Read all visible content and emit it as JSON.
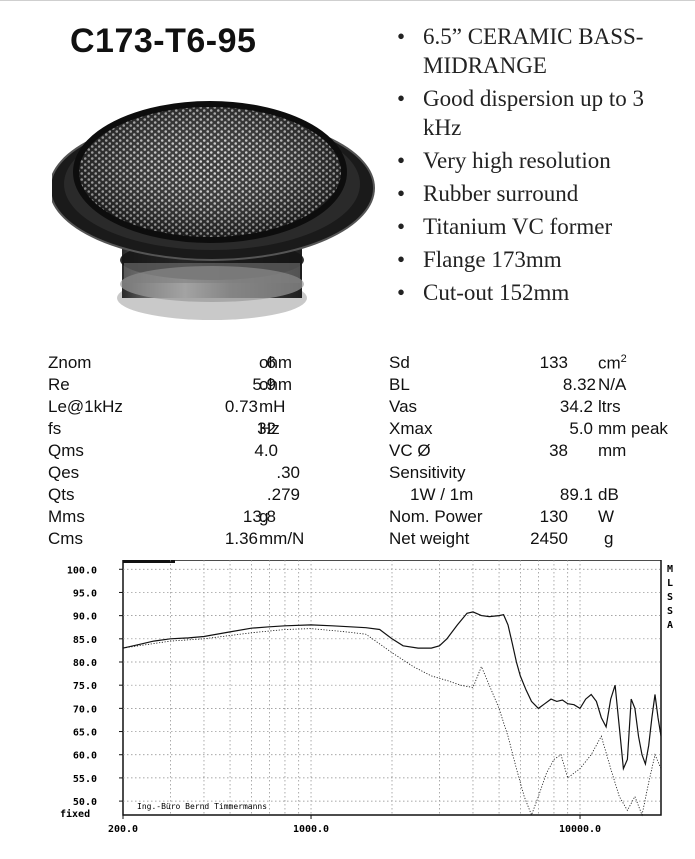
{
  "title": "C173-T6-95",
  "bullets": [
    "6.5” CERAMIC BASS-MIDRANGE",
    "Good dispersion up to 3 kHz",
    "Very high resolution",
    "Rubber surround",
    "Titanium VC former",
    "Flange 173mm",
    "Cut-out 152mm"
  ],
  "specs_left": [
    {
      "label": "Znom",
      "value": "6",
      "unit": "ohm"
    },
    {
      "label": "Re",
      "value": "5.9",
      "unit": "ohm"
    },
    {
      "label": "Le@1kHz",
      "value": "0.73",
      "unit": "mH"
    },
    {
      "label": "fs",
      "value": "32",
      "unit": "Hz"
    },
    {
      "label": "Qms",
      "value": "4.0",
      "unit": ""
    },
    {
      "label": "Qes",
      "value": ".30",
      "unit": ""
    },
    {
      "label": "Qts",
      "value": ".279",
      "unit": ""
    },
    {
      "label": "Mms",
      "value": "13.8",
      "unit": "g"
    },
    {
      "label": "Cms",
      "value": "1.36",
      "unit": "mm/N"
    }
  ],
  "specs_right": {
    "sd": {
      "label": "Sd",
      "value": "133",
      "unit": "cm",
      "unit_sup": "2"
    },
    "bl": {
      "label": "BL",
      "value": "8.32",
      "unit": "N/A"
    },
    "vas": {
      "label": "Vas",
      "value": "34.2",
      "unit": "ltrs"
    },
    "xmax": {
      "label": "Xmax",
      "value": "5.0",
      "unit": "mm peak"
    },
    "vc": {
      "label": "VC Ø",
      "value": "38",
      "unit": "mm"
    },
    "sens": {
      "label": "Sensitivity",
      "sub_label": "1W / 1m",
      "value": "89.1",
      "unit": "dB"
    },
    "power": {
      "label": "Nom. Power",
      "value": "130",
      "unit": "W"
    },
    "weight": {
      "label": "Net weight",
      "value": "2450",
      "unit": "g"
    }
  },
  "graph": {
    "side_label": [
      "M",
      "L",
      "S",
      "S",
      "A"
    ],
    "fixed_label": "fixed",
    "credit": "Ing.-Büro Bernd Timmermanns",
    "line_color": "#111111",
    "grid_color": "#888888"
  },
  "chart_data": {
    "type": "line",
    "title": "",
    "xlabel": "",
    "ylabel": "",
    "x_scale": "log",
    "xlim": [
      200,
      20000
    ],
    "ylim": [
      47,
      102
    ],
    "x_tick_labels": [
      "200.0",
      "1000.0",
      "10000.0"
    ],
    "y_tick_labels": [
      "100.0",
      "95.0",
      "90.0",
      "85.0",
      "80.0",
      "75.0",
      "70.0",
      "65.0",
      "60.0",
      "55.0",
      "50.0"
    ],
    "grid": true,
    "series": [
      {
        "style": "solid",
        "x": [
          200,
          230,
          260,
          300,
          350,
          400,
          500,
          600,
          700,
          800,
          1000,
          1200,
          1400,
          1600,
          1800,
          2000,
          2200,
          2500,
          2800,
          3000,
          3200,
          3500,
          3800,
          4000,
          4300,
          4600,
          5000,
          5200,
          5400,
          5600,
          5800,
          6000,
          6300,
          6600,
          7000,
          7400,
          7800,
          8200,
          8600,
          9000,
          9500,
          10000,
          10500,
          11000,
          11500,
          12000,
          12500,
          13000,
          13500,
          14000,
          14500,
          15000,
          15500,
          16000,
          16500,
          17000,
          17500,
          18000,
          18500,
          19000,
          19500,
          20000
        ],
        "y": [
          83,
          83.8,
          84.5,
          85,
          85.2,
          85.5,
          86.5,
          87.3,
          87.6,
          87.8,
          88,
          87.8,
          87.6,
          87.4,
          87,
          85,
          83.5,
          83,
          83,
          83.5,
          85,
          88,
          90.5,
          90.8,
          90,
          89.8,
          90,
          90.2,
          88,
          84,
          80,
          77,
          74,
          71.5,
          70,
          71,
          72,
          71.5,
          71.8,
          71,
          70.8,
          70,
          72,
          73,
          71.5,
          68,
          66,
          72,
          75,
          66,
          57,
          59,
          72,
          70,
          64,
          60,
          58,
          62,
          68,
          73,
          68,
          64
        ]
      },
      {
        "style": "dotted",
        "x": [
          200,
          300,
          400,
          600,
          800,
          1000,
          1300,
          1600,
          2000,
          2400,
          2800,
          3200,
          3600,
          4000,
          4300,
          4600,
          5000,
          5400,
          5800,
          6200,
          6600,
          7000,
          7500,
          8000,
          8500,
          9000,
          10000,
          11000,
          12000,
          13000,
          14000,
          15000,
          16000,
          17000,
          18000,
          19000,
          20000
        ],
        "y": [
          83,
          84.5,
          85,
          86.3,
          87,
          87.2,
          86.6,
          86,
          82,
          79,
          77,
          76,
          75,
          74.5,
          79,
          75,
          70,
          64,
          57,
          51,
          47,
          51,
          56,
          59,
          60,
          55,
          57,
          60,
          64,
          57,
          51,
          48,
          51,
          47,
          54,
          60,
          57
        ]
      }
    ]
  }
}
